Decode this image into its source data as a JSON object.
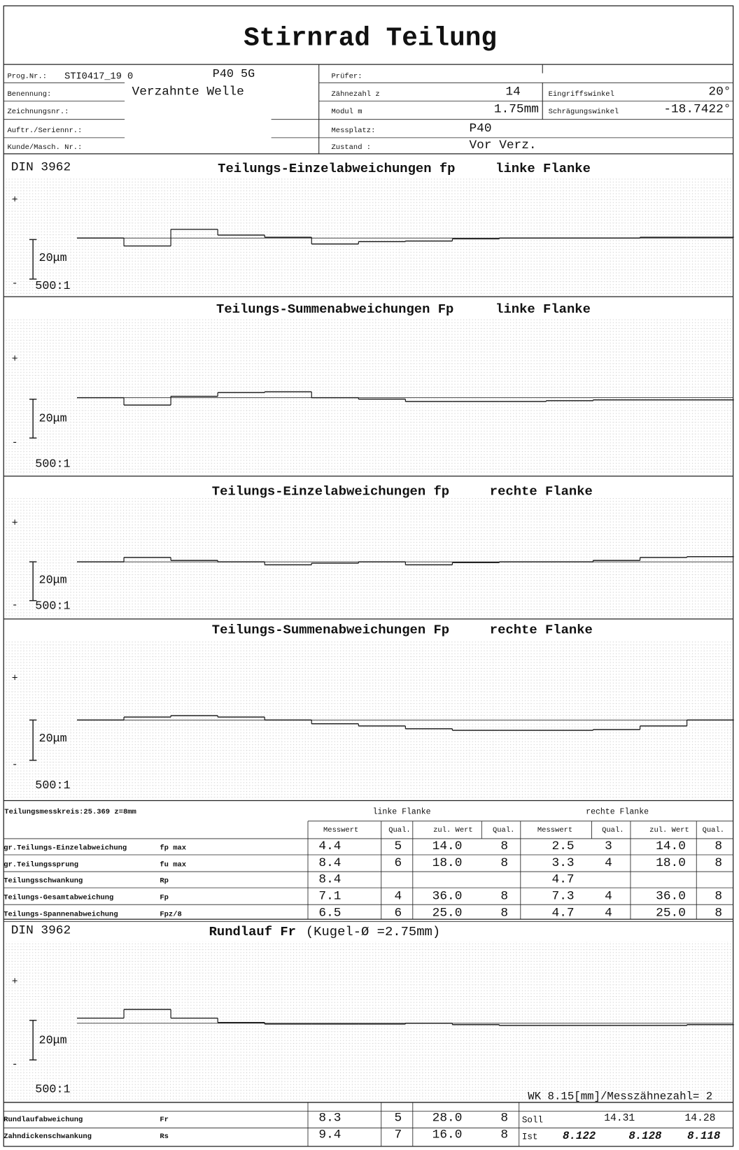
{
  "title": "Stirnrad Teilung",
  "header": {
    "left": [
      {
        "label": "Prog.Nr.:",
        "value": "STI0417_19 0",
        "extra": "P40 5G"
      },
      {
        "label": "Benennung:",
        "value": "Verzahnte Welle"
      },
      {
        "label": "Zeichnungsnr.:"
      },
      {
        "label": "Auftr./Seriennr.:"
      },
      {
        "label": "Kunde/Masch. Nr.:"
      }
    ],
    "middle": [
      {
        "label": "Prüfer:"
      },
      {
        "label": "Zähnezahl z",
        "value": "14"
      },
      {
        "label": "Modul m",
        "value": "1.75mm"
      },
      {
        "label": "Messplatz:",
        "value": "P40"
      },
      {
        "label": "Zustand :",
        "value": "Vor Verz."
      }
    ],
    "right": [
      {
        "label": "Eingriffswinkel",
        "value": "20°"
      },
      {
        "label": "Schrägungswinkel",
        "value": "-18.7422°"
      }
    ]
  },
  "charts": [
    {
      "standard": "DIN 3962",
      "title": "Teilungs-Einzelabweichungen fp",
      "flank": "linke Flanke",
      "scale": "20μm",
      "ratio": "500:1",
      "values": [
        0,
        -4.0,
        4.4,
        1.5,
        0.4,
        -3.0,
        -1.8,
        -1.5,
        -0.4,
        0,
        0,
        0,
        0.4,
        0.4
      ]
    },
    {
      "title": "Teilungs-Summenabweichungen Fp",
      "flank": "linke Flanke",
      "scale": "20μm",
      "ratio": "500:1",
      "values": [
        0,
        -3.7,
        0.7,
        2.6,
        3.0,
        0,
        -0.7,
        -1.9,
        -1.9,
        -1.9,
        -1.5,
        -1.1,
        -1.1,
        -1.1
      ]
    },
    {
      "title": "Teilungs-Einzelabweichungen fp",
      "flank": "rechte Flanke",
      "scale": "20μm",
      "ratio": "500:1",
      "values": [
        0,
        2.2,
        0.7,
        0,
        -1.5,
        -0.7,
        0,
        -1.5,
        -0.4,
        0,
        0,
        0.7,
        2.2,
        2.6
      ]
    },
    {
      "title": "Teilungs-Summenabweichungen Fp",
      "flank": "rechte Flanke",
      "scale": "20μm",
      "ratio": "500:1",
      "values": [
        0,
        1.5,
        2.2,
        1.5,
        0,
        -1.9,
        -3.0,
        -4.4,
        -5.2,
        -5.2,
        -5.2,
        -4.8,
        -3.0,
        0
      ]
    },
    {
      "standard": "DIN 3962",
      "title": "Rundlauf Fr",
      "subtitle": "(Kugel-Ø =2.75mm)",
      "scale": "20μm",
      "ratio": "500:1",
      "note": "WK 8.15[mm]/Messzähnezahl= 2",
      "values": [
        2.6,
        7.0,
        2.6,
        0.4,
        -0.4,
        -0.4,
        -0.4,
        0,
        -0.7,
        -1.1,
        -1.1,
        -1.1,
        -1.1,
        -0.7
      ]
    }
  ],
  "pitch_table": {
    "caption": "Teilungsmesskreis:25.369 z=8mm",
    "groups": [
      "linke Flanke",
      "rechte Flanke"
    ],
    "columns": [
      "Messwert",
      "Qual.",
      "zul. Wert",
      "Qual.",
      "Messwert",
      "Qual.",
      "zul. Wert",
      "Qual."
    ],
    "rows": [
      {
        "label": "gr.Teilungs-Einzelabweichung",
        "symbol": "fp max",
        "cells": [
          "4.4",
          "5",
          "14.0",
          "8",
          "2.5",
          "3",
          "14.0",
          "8"
        ]
      },
      {
        "label": "gr.Teilungssprung",
        "symbol": "fu max",
        "cells": [
          "8.4",
          "6",
          "18.0",
          "8",
          "3.3",
          "4",
          "18.0",
          "8"
        ]
      },
      {
        "label": "Teilungsschwankung",
        "symbol": "Rp",
        "cells": [
          "8.4",
          null,
          null,
          null,
          "4.7",
          null,
          null,
          null
        ]
      },
      {
        "label": "Teilungs-Gesamtabweichung",
        "symbol": "Fp",
        "cells": [
          "7.1",
          "4",
          "36.0",
          "8",
          "7.3",
          "4",
          "36.0",
          "8"
        ]
      },
      {
        "label": "Teilungs-Spannenabweichung",
        "symbol": "Fpz/8",
        "cells": [
          "6.5",
          "6",
          "25.0",
          "8",
          "4.7",
          "4",
          "25.0",
          "8"
        ]
      }
    ]
  },
  "runout_table": {
    "rows": [
      {
        "label": "Rundlaufabweichung",
        "symbol": "Fr",
        "cells": [
          "8.3",
          "5",
          "28.0",
          "8"
        ]
      },
      {
        "label": "Zahndickenschwankung",
        "symbol": "Rs",
        "cells": [
          "9.4",
          "7",
          "16.0",
          "8"
        ]
      }
    ],
    "soll_label": "Soll",
    "soll": [
      "14.31",
      "14.28"
    ],
    "ist_label": "Ist",
    "ist": [
      "8.122",
      "8.128",
      "8.118"
    ]
  }
}
